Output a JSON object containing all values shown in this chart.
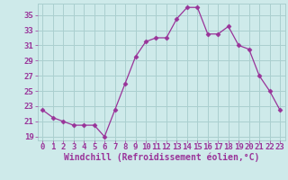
{
  "x": [
    0,
    1,
    2,
    3,
    4,
    5,
    6,
    7,
    8,
    9,
    10,
    11,
    12,
    13,
    14,
    15,
    16,
    17,
    18,
    19,
    20,
    21,
    22,
    23
  ],
  "y": [
    22.5,
    21.5,
    21.0,
    20.5,
    20.5,
    20.5,
    19.0,
    22.5,
    26.0,
    29.5,
    31.5,
    32.0,
    32.0,
    34.5,
    36.0,
    36.0,
    32.5,
    32.5,
    33.5,
    31.0,
    30.5,
    27.0,
    25.0,
    22.5
  ],
  "line_color": "#993399",
  "marker": "D",
  "marker_size": 2.5,
  "bg_color": "#ceeaea",
  "grid_color": "#aacfcf",
  "xlabel": "Windchill (Refroidissement éolien,°C)",
  "xlim": [
    -0.5,
    23.5
  ],
  "ylim": [
    18.5,
    36.5
  ],
  "yticks": [
    19,
    21,
    23,
    25,
    27,
    29,
    31,
    33,
    35
  ],
  "xticks": [
    0,
    1,
    2,
    3,
    4,
    5,
    6,
    7,
    8,
    9,
    10,
    11,
    12,
    13,
    14,
    15,
    16,
    17,
    18,
    19,
    20,
    21,
    22,
    23
  ],
  "tick_label_color": "#993399",
  "xlabel_color": "#993399",
  "xlabel_fontsize": 7,
  "tick_fontsize": 6.5
}
